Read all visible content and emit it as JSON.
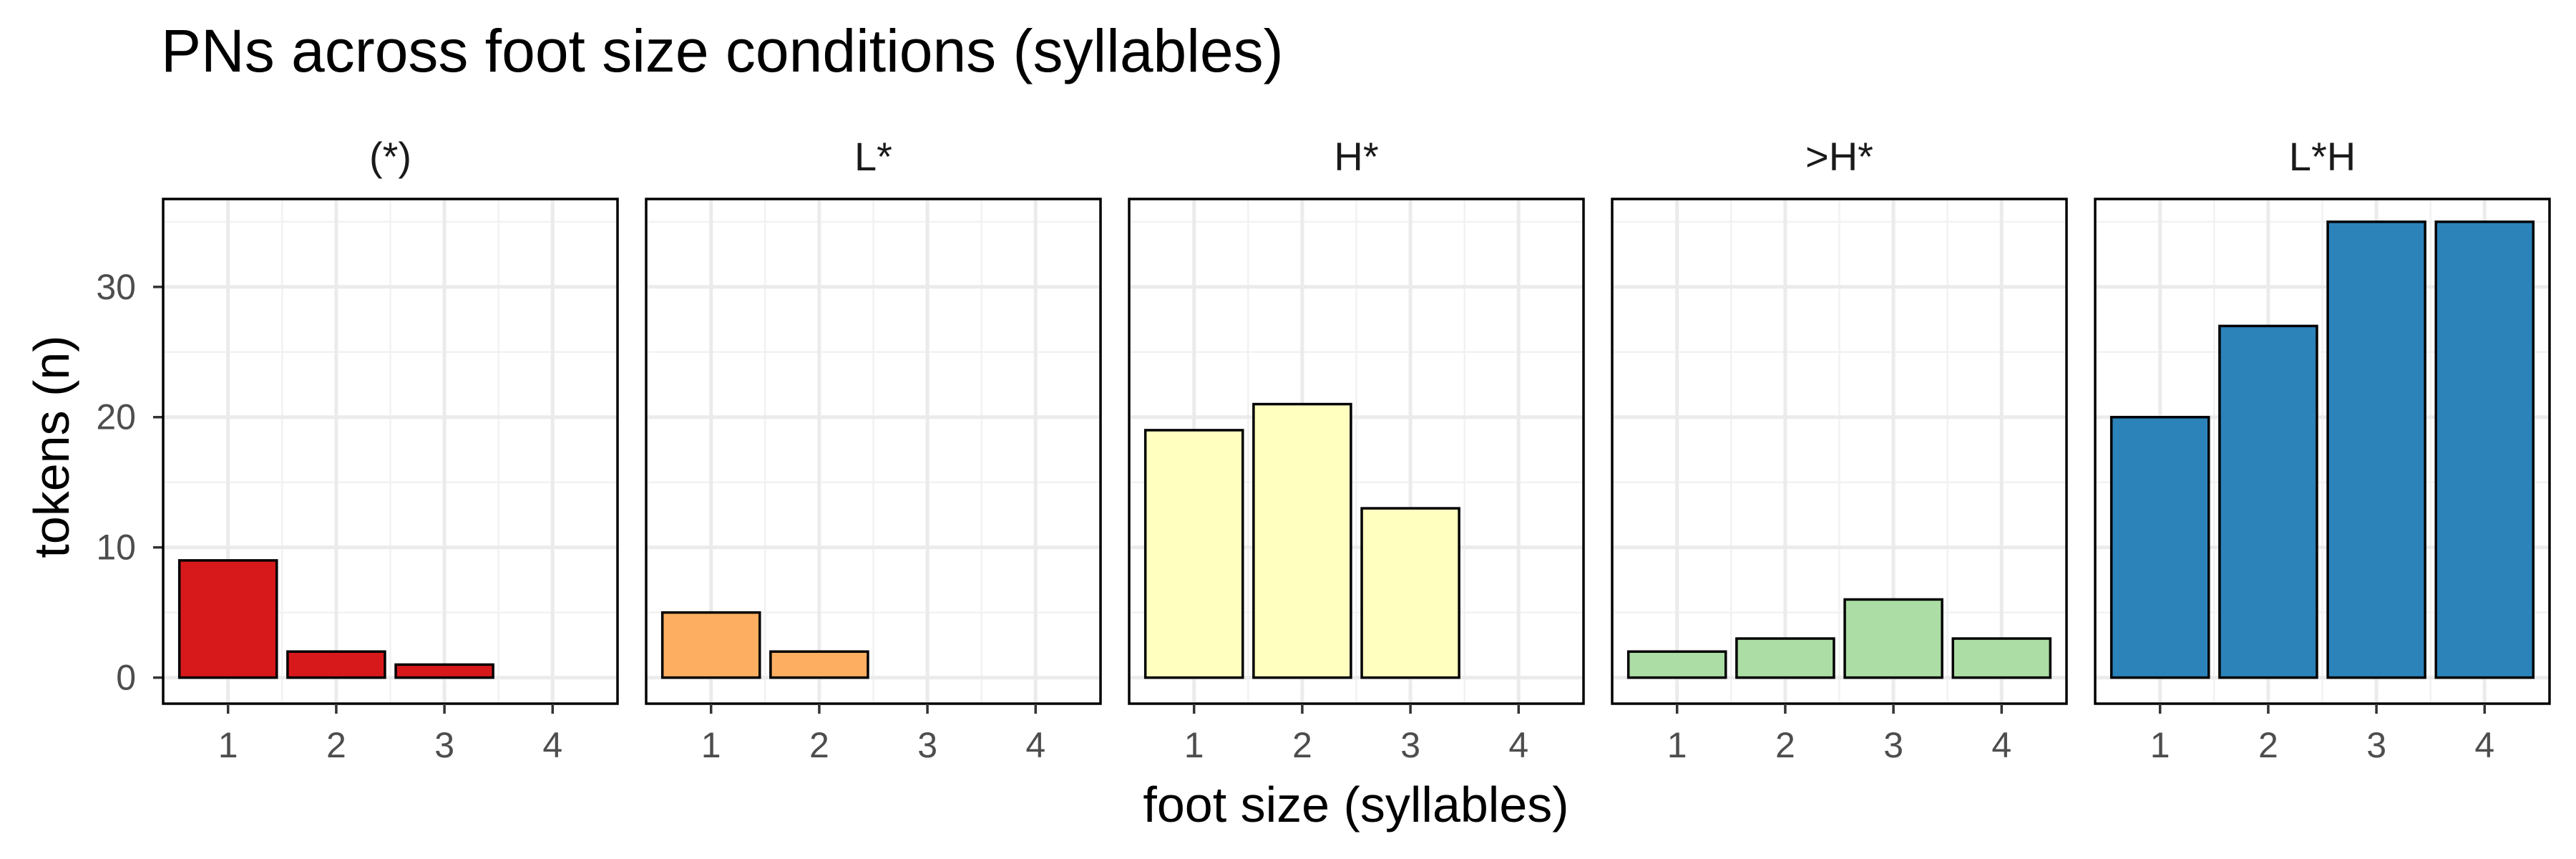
{
  "chart_data": {
    "type": "bar",
    "title": "PNs across foot size conditions (syllables)",
    "xlabel": "foot size (syllables)",
    "ylabel": "tokens (n)",
    "categories": [
      "1",
      "2",
      "3",
      "4"
    ],
    "ylim": [
      -2,
      36.75
    ],
    "yticks": [
      0,
      10,
      20,
      30
    ],
    "grid": true,
    "legend": "none",
    "facets": [
      {
        "label": "(*)",
        "color": "#d7191c",
        "values": [
          9,
          2,
          1,
          null
        ]
      },
      {
        "label": "L*",
        "color": "#fdae61",
        "values": [
          5,
          2,
          null,
          null
        ]
      },
      {
        "label": "H*",
        "color": "#ffffbf",
        "values": [
          19,
          21,
          13,
          null
        ]
      },
      {
        "label": ">H*",
        "color": "#abdda4",
        "values": [
          2,
          3,
          6,
          3
        ]
      },
      {
        "label": "L*H",
        "color": "#2b83ba",
        "values": [
          20,
          27,
          35,
          35
        ]
      }
    ]
  }
}
